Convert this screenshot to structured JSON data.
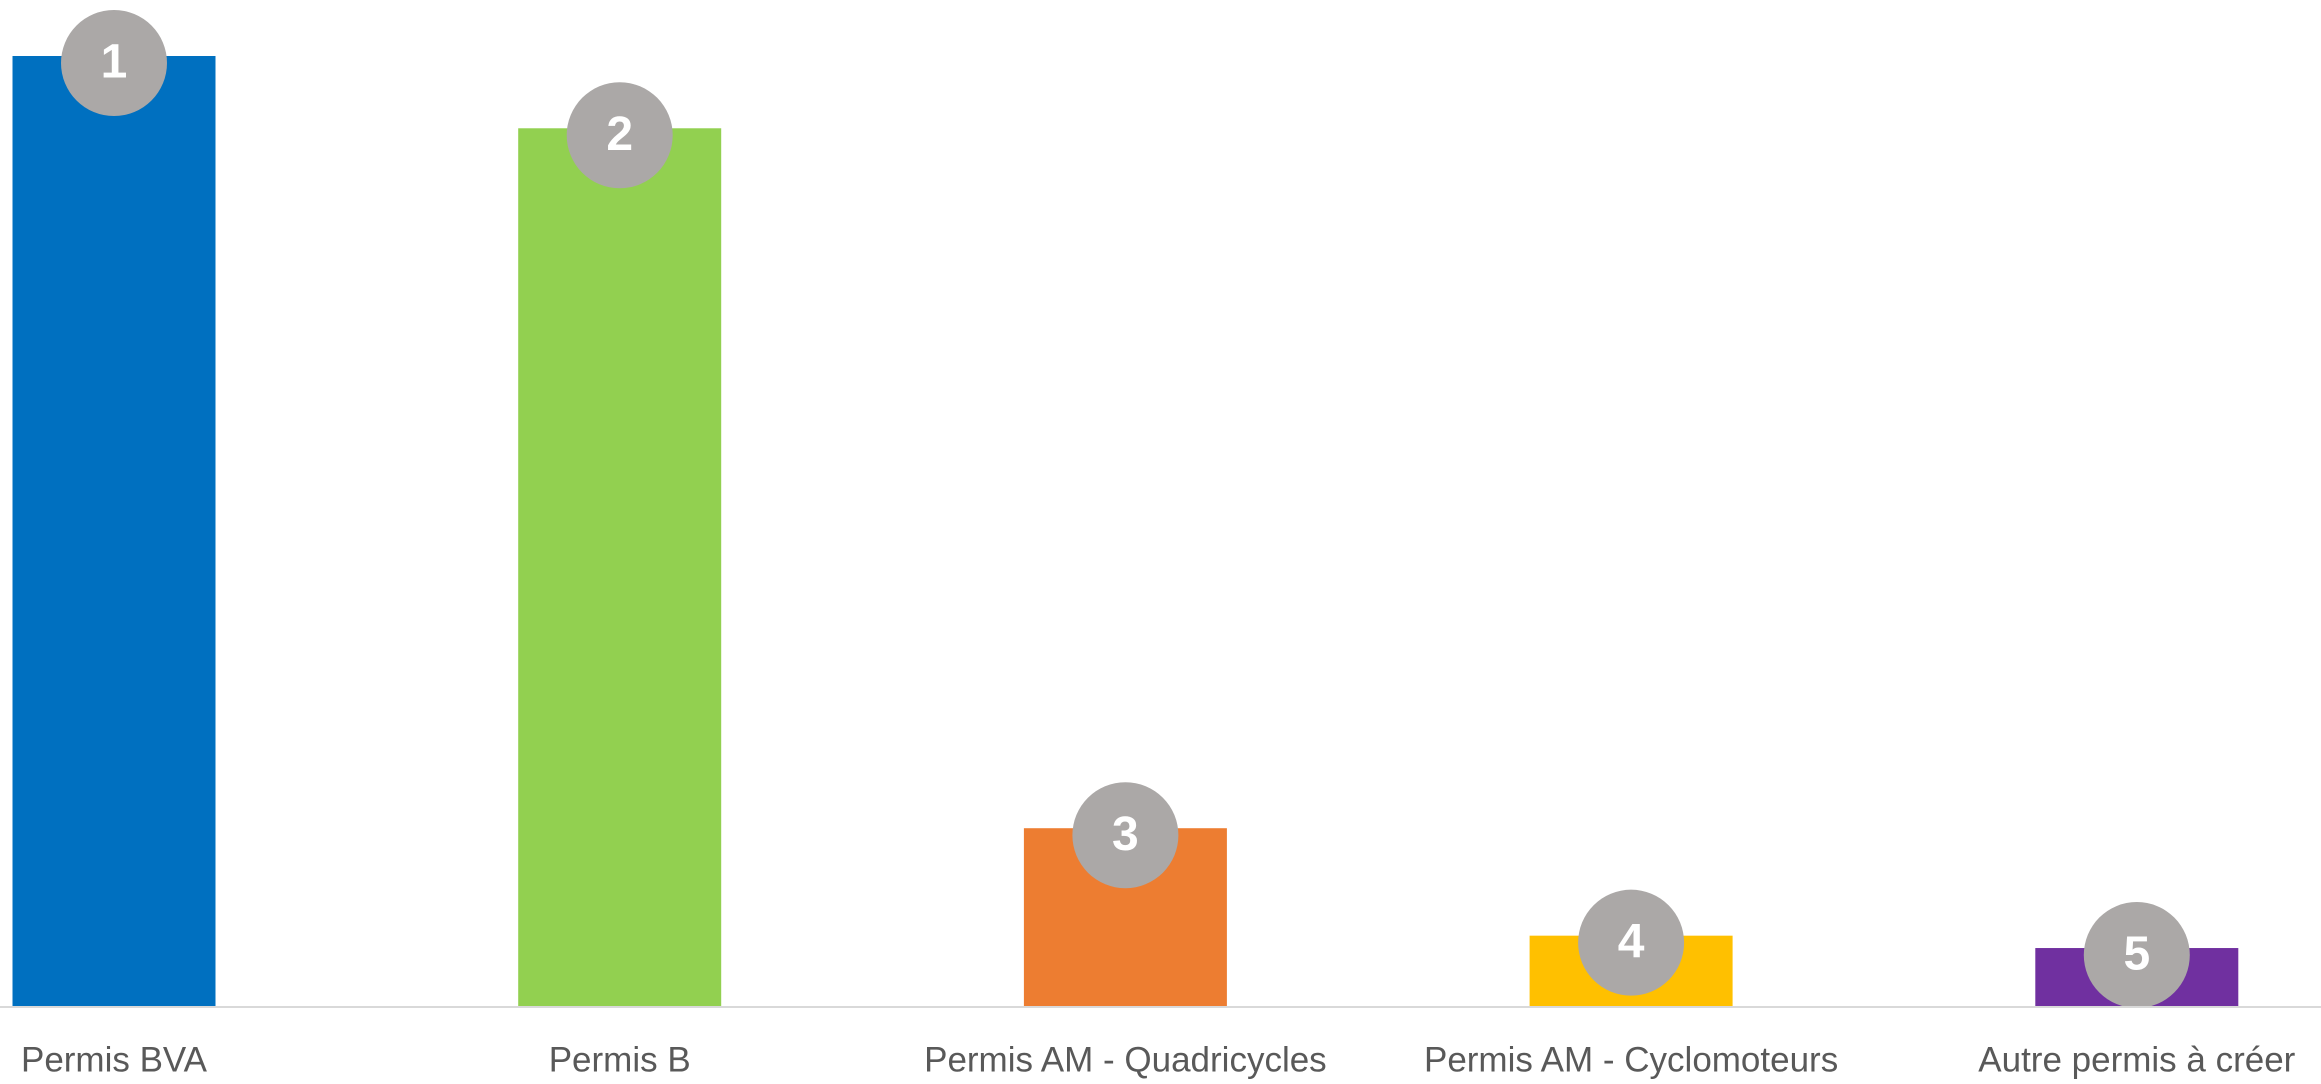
{
  "chart_data": {
    "type": "bar",
    "categories": [
      "Permis BVA",
      "Permis B",
      "Permis AM - Quadricycles",
      "Permis AM - Cyclomoteurs",
      "Autre permis à créer"
    ],
    "values": [
      100,
      92.4,
      18.8,
      7.5,
      6.2
    ],
    "badges": [
      1,
      2,
      3,
      4,
      5
    ],
    "colors": [
      "#0070c0",
      "#92d050",
      "#ed7d31",
      "#ffc000",
      "#7030a0"
    ],
    "ylim": [
      0,
      100
    ]
  }
}
